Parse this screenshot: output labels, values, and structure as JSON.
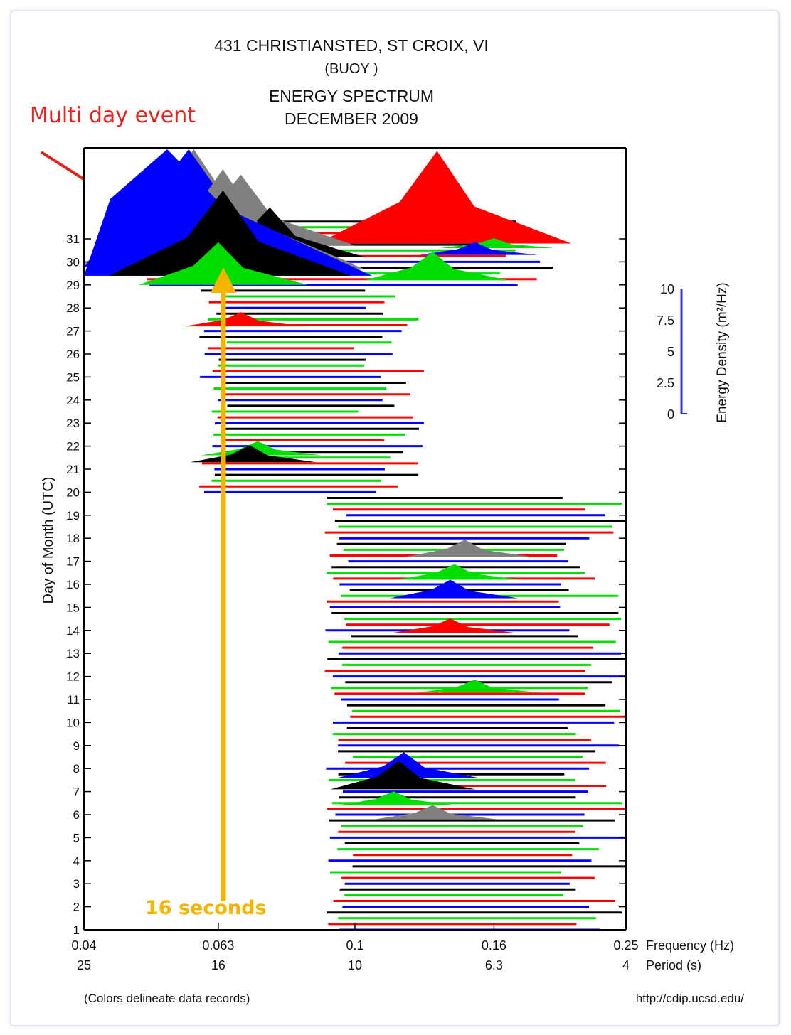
{
  "chart_data": {
    "type": "area",
    "title_lines": [
      "431 CHRISTIANSTED, ST CROIX, VI",
      "(BUOY )",
      "ENERGY SPECTRUM",
      "DECEMBER 2009"
    ],
    "ylabel": "Day of Month (UTC)",
    "x_axis": {
      "frequency_label": "Frequency (Hz)",
      "period_label": "Period (s)",
      "frequency_ticks": [
        "0.04",
        "0.063",
        "0.1",
        "0.16",
        "0.25"
      ],
      "period_ticks": [
        "25",
        "16",
        "10",
        "6.3",
        "4"
      ],
      "range_hz": [
        0.04,
        0.25
      ]
    },
    "y_ticks": [
      1,
      2,
      3,
      4,
      5,
      6,
      7,
      8,
      9,
      10,
      11,
      12,
      13,
      14,
      15,
      16,
      17,
      18,
      19,
      20,
      21,
      22,
      23,
      24,
      25,
      26,
      27,
      28,
      29,
      30,
      31
    ],
    "ylim": [
      1,
      31
    ],
    "colorbar": {
      "label": "Energy Density (m²/Hz)",
      "ticks": [
        "10",
        "7.5",
        "5",
        "2.5",
        "0"
      ],
      "range": [
        0,
        10
      ]
    },
    "series_colors": [
      "#0000ff",
      "#ff0000",
      "#00dd00",
      "#000000",
      "#808080"
    ],
    "peaks": [
      {
        "day": 29.4,
        "freq": 0.053,
        "energy": 12.0,
        "color": "#0000ff"
      },
      {
        "day": 29.8,
        "freq": 0.057,
        "energy": 9.0,
        "color": "#0000ff"
      },
      {
        "day": 29.9,
        "freq": 0.058,
        "energy": 8.5,
        "color": "#808080"
      },
      {
        "day": 29.6,
        "freq": 0.06,
        "energy": 6.0,
        "color": "#000000"
      },
      {
        "day": 30.7,
        "freq": 0.068,
        "energy": 5.0,
        "color": "#808080"
      },
      {
        "day": 30.6,
        "freq": 0.066,
        "energy": 4.0,
        "color": "#000000"
      },
      {
        "day": 29.7,
        "freq": 0.064,
        "energy": 7.0,
        "color": "#808080"
      },
      {
        "day": 29.4,
        "freq": 0.064,
        "energy": 6.0,
        "color": "#000000"
      },
      {
        "day": 29.0,
        "freq": 0.063,
        "energy": 3.0,
        "color": "#00dd00"
      },
      {
        "day": 30.2,
        "freq": 0.075,
        "energy": 3.5,
        "color": "#000000"
      },
      {
        "day": 30.9,
        "freq": 0.085,
        "energy": 0.5,
        "color": "#000000"
      },
      {
        "day": 30.8,
        "freq": 0.132,
        "energy": 6.5,
        "color": "#ff0000"
      },
      {
        "day": 30.6,
        "freq": 0.16,
        "energy": 0.7,
        "color": "#00dd00"
      },
      {
        "day": 30.3,
        "freq": 0.15,
        "energy": 0.9,
        "color": "#0000ff"
      },
      {
        "day": 29.2,
        "freq": 0.13,
        "energy": 2.0,
        "color": "#00dd00"
      },
      {
        "day": 27.2,
        "freq": 0.068,
        "energy": 1.0,
        "color": "#ff0000"
      },
      {
        "day": 21.3,
        "freq": 0.07,
        "energy": 1.2,
        "color": "#000000"
      },
      {
        "day": 21.6,
        "freq": 0.072,
        "energy": 1.0,
        "color": "#00dd00"
      },
      {
        "day": 17.2,
        "freq": 0.145,
        "energy": 1.2,
        "color": "#808080"
      },
      {
        "day": 16.2,
        "freq": 0.14,
        "energy": 1.1,
        "color": "#00dd00"
      },
      {
        "day": 15.4,
        "freq": 0.138,
        "energy": 1.3,
        "color": "#0000ff"
      },
      {
        "day": 13.9,
        "freq": 0.138,
        "energy": 1.0,
        "color": "#ff0000"
      },
      {
        "day": 11.3,
        "freq": 0.15,
        "energy": 0.9,
        "color": "#00dd00"
      },
      {
        "day": 7.6,
        "freq": 0.118,
        "energy": 1.8,
        "color": "#0000ff"
      },
      {
        "day": 7.1,
        "freq": 0.116,
        "energy": 2.0,
        "color": "#000000"
      },
      {
        "day": 6.4,
        "freq": 0.114,
        "energy": 1.0,
        "color": "#00dd00"
      },
      {
        "day": 5.8,
        "freq": 0.13,
        "energy": 1.0,
        "color": "#808080"
      }
    ],
    "annotations": {
      "event_label": "Multi day event",
      "period_label": "16 seconds",
      "event_color": "#e8211d",
      "period_color": "#f5b400"
    },
    "footer_left": "(Colors delineate data records)",
    "footer_right": "http://cdip.ucsd.edu/"
  }
}
